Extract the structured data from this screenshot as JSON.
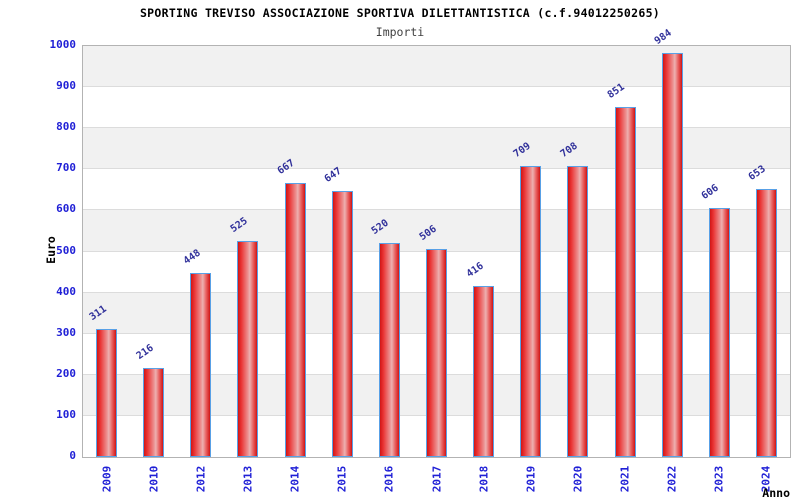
{
  "chart_data": {
    "type": "bar",
    "title": "SPORTING TREVISO ASSOCIAZIONE SPORTIVA DILETTANTISTICA (c.f.94012250265)",
    "subtitle": "Importi",
    "xlabel": "Anno",
    "ylabel": "Euro",
    "categories": [
      "2009",
      "2010",
      "2012",
      "2013",
      "2014",
      "2015",
      "2016",
      "2017",
      "2018",
      "2019",
      "2020",
      "2021",
      "2022",
      "2023",
      "2024"
    ],
    "values": [
      311,
      216,
      448,
      525,
      667,
      647,
      520,
      506,
      416,
      709,
      708,
      851,
      984,
      606,
      653
    ],
    "ylim": [
      0,
      1000
    ],
    "ytick_step": 100,
    "grid": "alternating-horizontal-bands",
    "legend": "none",
    "colors": {
      "bar_fill_main": "#e02020",
      "bar_fill_highlight": "#edb0b0",
      "bar_border": "#58a0e6",
      "tick_label": "#1f1fd6",
      "value_label": "#30309a",
      "band_gray": "#f1f1f1",
      "band_white": "#ffffff",
      "plot_border": "#b3b3b3",
      "title_color": "#000000",
      "subtitle_color": "#404040"
    }
  }
}
